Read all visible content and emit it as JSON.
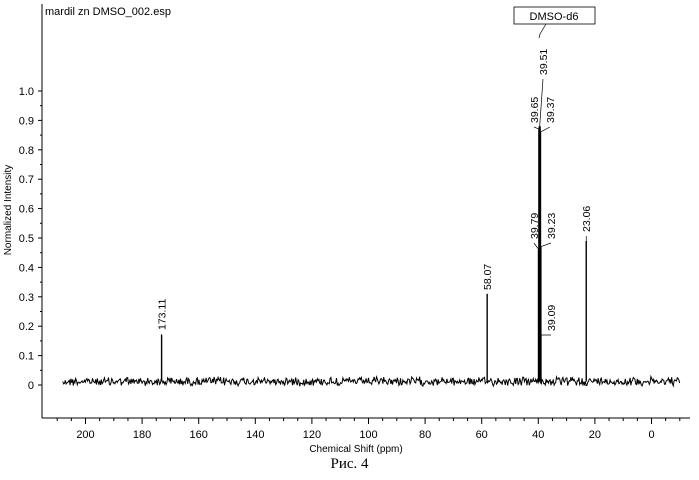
{
  "file_title": "mardil zn DMSO_002.esp",
  "caption": "Рис. 4",
  "solvent_label": "DMSO-d6",
  "chart_data": {
    "type": "line",
    "title": "",
    "xlabel": "Chemical Shift (ppm)",
    "ylabel": "Normalized Intensity",
    "xlim": [
      210,
      -10
    ],
    "x_reversed": true,
    "ylim": [
      0,
      1.0
    ],
    "grid": false,
    "legend": "none",
    "x_ticks": [
      200,
      180,
      160,
      140,
      120,
      100,
      80,
      60,
      40,
      20,
      0
    ],
    "y_ticks": [
      0,
      0.1,
      0.2,
      0.3,
      0.4,
      0.5,
      0.6,
      0.7,
      0.8,
      0.9,
      1.0
    ],
    "y_tick_labels": [
      "0",
      "0.1",
      "0.2",
      "0.3",
      "0.4",
      "0.5",
      "0.6",
      "0.7",
      "0.8",
      "0.9",
      "1.0"
    ],
    "x_range_plotted": [
      208,
      -10
    ],
    "peaks": [
      {
        "shift": 173.11,
        "label": "173.11",
        "height": 0.17
      },
      {
        "shift": 58.07,
        "label": "58.07",
        "height": 0.31
      },
      {
        "shift": 39.79,
        "label": "39.79",
        "height": 0.46
      },
      {
        "shift": 39.65,
        "label": "39.65",
        "height": 0.87
      },
      {
        "shift": 39.51,
        "label": "39.51",
        "height": 0.88
      },
      {
        "shift": 39.37,
        "label": "39.37",
        "height": 0.86
      },
      {
        "shift": 39.23,
        "label": "39.23",
        "height": 0.47
      },
      {
        "shift": 39.09,
        "label": "39.09",
        "height": 0.17
      },
      {
        "shift": 23.06,
        "label": "23.06",
        "height": 0.49
      }
    ]
  }
}
